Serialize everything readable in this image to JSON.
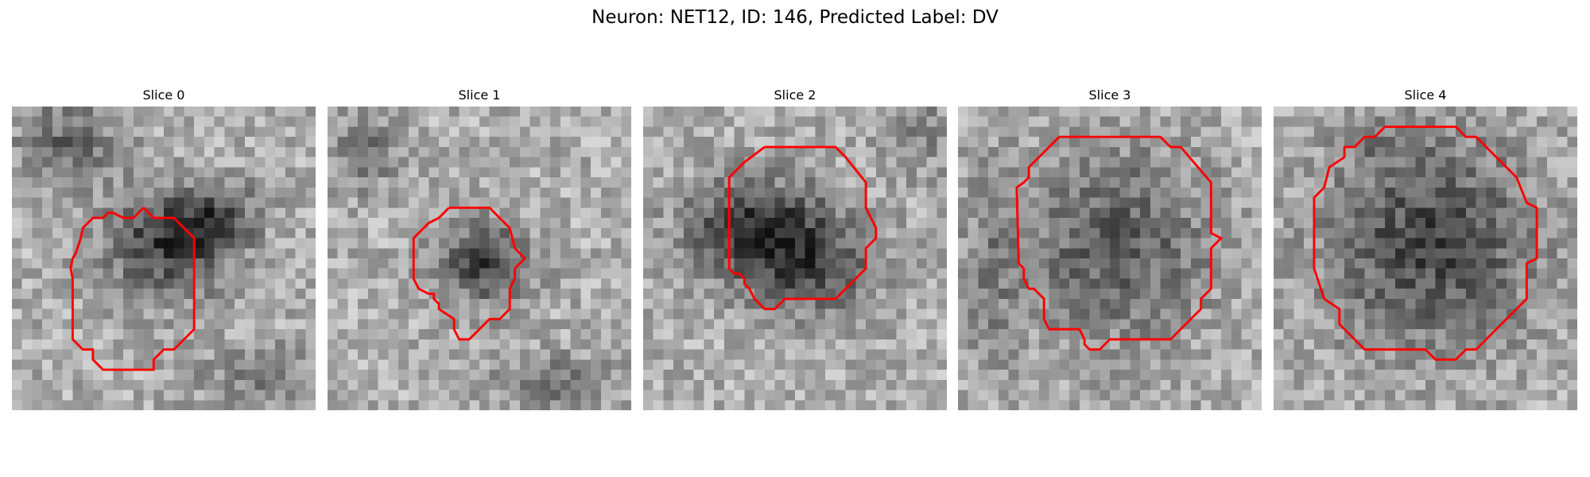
{
  "figure": {
    "title": "Neuron: NET12, ID: 146, Predicted Label: DV"
  },
  "panels": [
    {
      "title": "Slice 0"
    },
    {
      "title": "Slice 1"
    },
    {
      "title": "Slice 2"
    },
    {
      "title": "Slice 3"
    },
    {
      "title": "Slice 4"
    }
  ],
  "contour_color": "#ff0000",
  "colormap": "gray"
}
